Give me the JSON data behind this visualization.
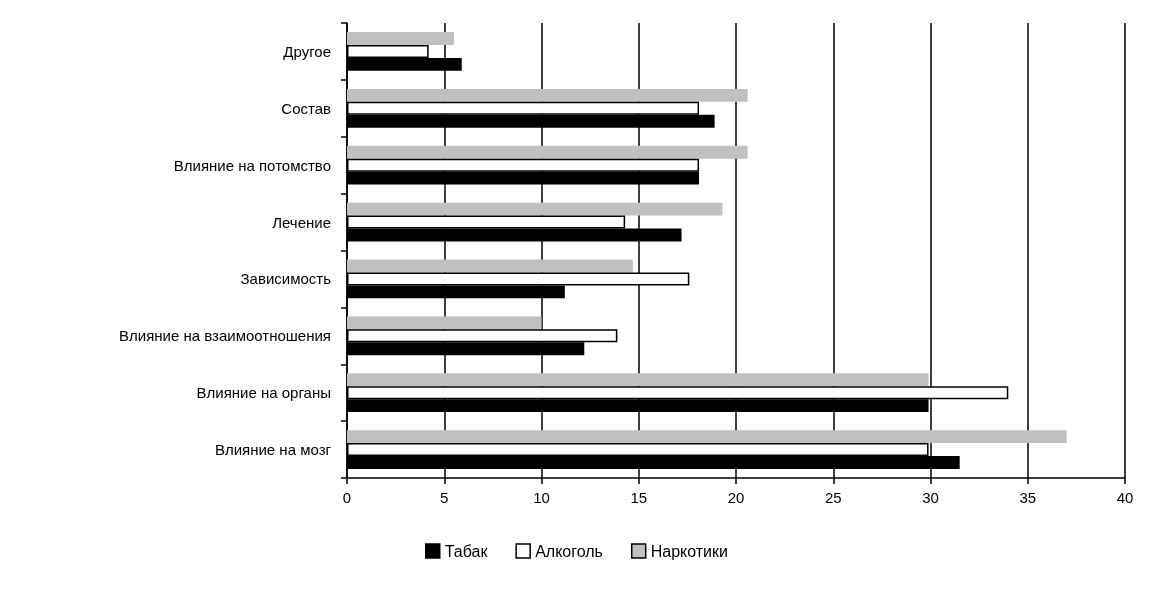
{
  "chart_data": {
    "type": "bar",
    "orientation": "horizontal",
    "categories": [
      "Другое",
      "Состав",
      "Влияние на потомство",
      "Лечение",
      "Зависимость",
      "Влияние на взаимоотношения",
      "Влияние на органы",
      "Влияние на мозг"
    ],
    "series": [
      {
        "name": "Наркотики",
        "color": "#c0c0c0",
        "values": [
          5.5,
          20.6,
          20.6,
          19.3,
          14.7,
          10.0,
          29.9,
          37.0
        ]
      },
      {
        "name": "Алкоголь",
        "color": "#ffffff",
        "values": [
          4.2,
          18.1,
          18.1,
          14.3,
          17.6,
          13.9,
          34.0,
          29.9
        ]
      },
      {
        "name": "Табак",
        "color": "#000000",
        "values": [
          5.9,
          18.9,
          18.1,
          17.2,
          11.2,
          12.2,
          29.9,
          31.5
        ]
      }
    ],
    "xlim": [
      0,
      40
    ],
    "xticks": [
      0,
      5,
      10,
      15,
      20,
      25,
      30,
      35,
      40
    ],
    "grid": "x",
    "legend": "bottom"
  }
}
